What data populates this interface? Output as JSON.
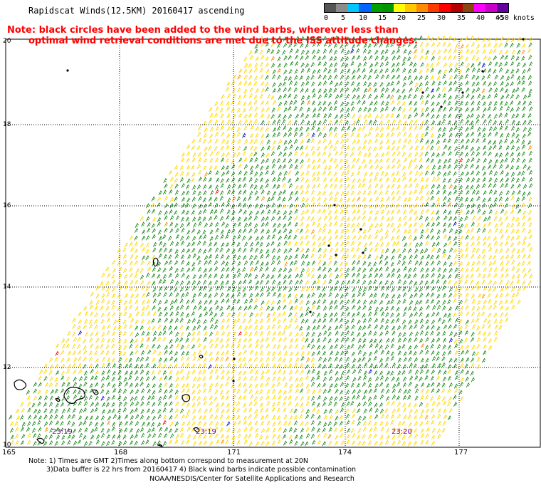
{
  "title": "Rapidscat Winds(12.5KM) 20160417 ascending",
  "note": {
    "line1": "Note: black circles have been added to the wind barbs, wherever less than",
    "line2": "optimal wind retrieval conditions are met due to the ISS attitude changes."
  },
  "legend": {
    "labels": [
      "0",
      "5",
      "10",
      "15",
      "20",
      "25",
      "30",
      "35",
      "40",
      "45",
      ">50 knots"
    ],
    "colors": [
      "#555555",
      "#8c8c8c",
      "#00c8ff",
      "#0064ff",
      "#00a000",
      "#009600",
      "#ffff00",
      "#ffc800",
      "#ff8c00",
      "#ff3c00",
      "#ff0000",
      "#b40000",
      "#8b4513",
      "#ff00ff",
      "#c800c8",
      "#6400a0"
    ]
  },
  "map": {
    "lat_labels": [
      "20",
      "18",
      "16",
      "14",
      "12",
      "10"
    ],
    "lon_labels": [
      "165",
      "168",
      "171",
      "174",
      "177"
    ],
    "time_labels": [
      "23:19",
      "23:19",
      "23:20"
    ],
    "wind_colors": {
      "yellow": "#ffd700",
      "green": "#1a8a1a",
      "orange": "#ff8c00",
      "blue": "#0000cc",
      "red": "#ff0000",
      "black": "#000000",
      "time": "#8000a0"
    }
  },
  "footer": {
    "line1": "Note: 1) Times are GMT 2)Times along bottom correspond to measurement at 20N",
    "line2": "3)Data buffer is 22 hrs from 20160417 4) Black wind barbs indicate possible contamination",
    "line3": "NOAA/NESDIS/Center for Satellite Applications and Research"
  }
}
